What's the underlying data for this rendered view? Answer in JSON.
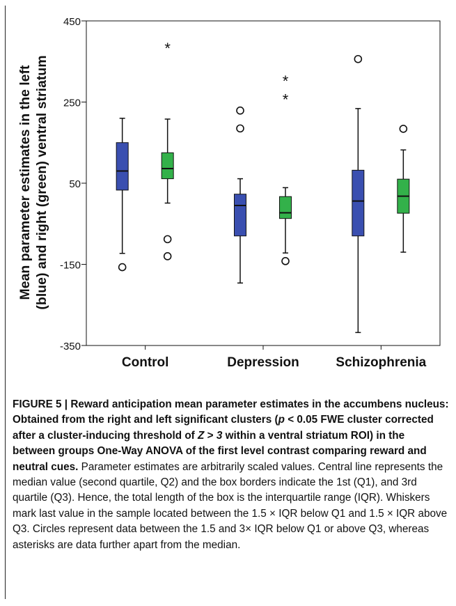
{
  "chart_data": {
    "type": "boxplot",
    "ylabel_line1": "Mean parameter estimates in the left",
    "ylabel_line2": "(blue) and right (green) ventral striatum",
    "ylim": [
      -350,
      450
    ],
    "yticks": [
      "450",
      "250",
      "50",
      "-150",
      "-350"
    ],
    "categories": [
      "Control",
      "Depression",
      "Schizophrenia"
    ],
    "colors": {
      "left": "#3a4fb0",
      "right": "#33b14a"
    },
    "series": [
      {
        "side": "left",
        "boxes": [
          {
            "whisker_low": -123,
            "q1": 33,
            "median": 80,
            "q3": 150,
            "whisker_high": 210,
            "outliers": [
              -157
            ],
            "extremes": []
          },
          {
            "whisker_low": -196,
            "q1": -80,
            "median": -5,
            "q3": 23,
            "whisker_high": 61,
            "outliers": [
              229,
              185
            ],
            "extremes": []
          },
          {
            "whisker_low": -318,
            "q1": -80,
            "median": 6,
            "q3": 82,
            "whisker_high": 234,
            "outliers": [
              356
            ],
            "extremes": []
          }
        ]
      },
      {
        "side": "right",
        "boxes": [
          {
            "whisker_low": 1,
            "q1": 61,
            "median": 86,
            "q3": 125,
            "whisker_high": 208,
            "outliers": [
              -88,
              -130
            ],
            "extremes": [
              385
            ]
          },
          {
            "whisker_low": -122,
            "q1": -37,
            "median": -23,
            "q3": 17,
            "whisker_high": 39,
            "outliers": [
              -142
            ],
            "extremes": [
              304,
              259
            ]
          },
          {
            "whisker_low": -120,
            "q1": -24,
            "median": 18,
            "q3": 60,
            "whisker_high": 132,
            "outliers": [
              184
            ],
            "extremes": []
          }
        ]
      }
    ]
  },
  "caption": {
    "title": "FIGURE 5 | Reward anticipation mean parameter estimates in the accumbens nucleus: Obtained from the right and left significant clusters (",
    "p": "p",
    "t2": " < 0.05 FWE cluster corrected after a cluster-inducing threshold of ",
    "z": "Z",
    "t3": " > ",
    "three": "3",
    "t4": " within a ventral striatum ROI) in the between groups One-Way ANOVA of the first level contrast comparing reward and neutral cues.",
    "body": " Parameter estimates are arbitrarily scaled values. Central line represents the median value (second quartile, Q2) and the box borders indicate the 1st (Q1), and 3rd quartile (Q3). Hence, the total length of the box is the interquartile range (IQR). Whiskers mark last value in the sample located between the 1.5 × IQR below Q1 and 1.5 × IQR above Q3. Circles represent data between the 1.5 and 3× IQR below Q1 or above Q3, whereas asterisks are data further apart from the median."
  }
}
